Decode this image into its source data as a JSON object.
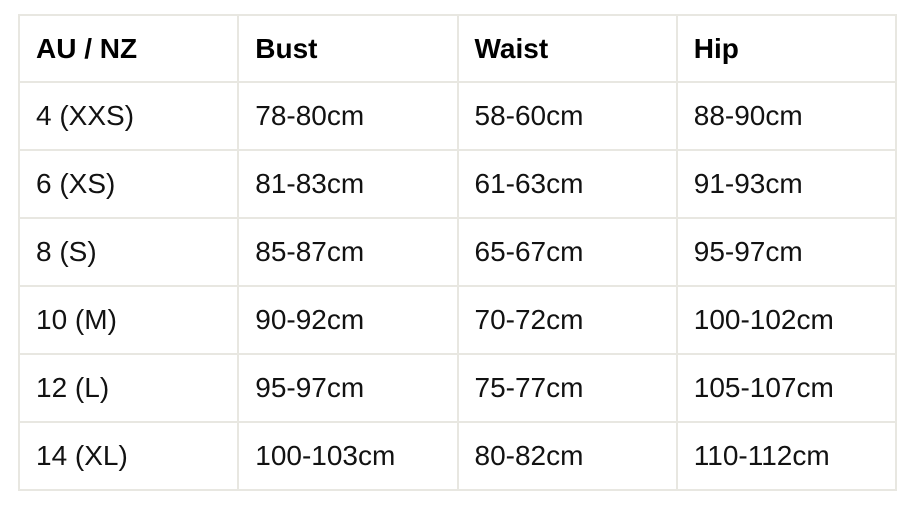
{
  "colors": {
    "background": "#ffffff",
    "grid_border": "#e8e7e1",
    "header_text": "#000000",
    "body_text": "#121212"
  },
  "chart_data": {
    "type": "table",
    "title": "",
    "columns": [
      "AU / NZ",
      "Bust",
      "Waist",
      "Hip"
    ],
    "rows": [
      [
        "4 (XXS)",
        "78-80cm",
        "58-60cm",
        "88-90cm"
      ],
      [
        "6 (XS)",
        "81-83cm",
        "61-63cm",
        "91-93cm"
      ],
      [
        "8 (S)",
        "85-87cm",
        "65-67cm",
        "95-97cm"
      ],
      [
        "10 (M)",
        "90-92cm",
        "70-72cm",
        "100-102cm"
      ],
      [
        "12 (L)",
        "95-97cm",
        "75-77cm",
        "105-107cm"
      ],
      [
        "14 (XL)",
        "100-103cm",
        "80-82cm",
        "110-112cm"
      ]
    ]
  }
}
